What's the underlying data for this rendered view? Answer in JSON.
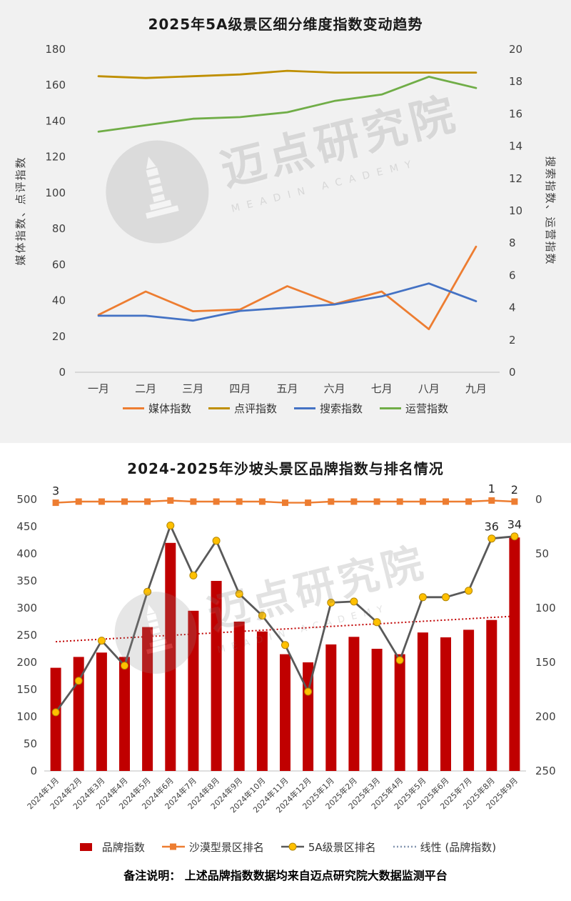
{
  "watermark": {
    "brand": "迈点研究院",
    "sub": "MEADIN ACADEMY"
  },
  "footer_note": "备注说明： 上述品牌指数数据均来自迈点研究院大数据监测平台",
  "chart_data": [
    {
      "type": "line",
      "title": "2025年5A级景区细分维度指数变动趋势",
      "left_axis_label": "媒体指数、点评指数",
      "right_axis_label": "搜索指数、运营指数",
      "categories": [
        "一月",
        "二月",
        "三月",
        "四月",
        "五月",
        "六月",
        "七月",
        "八月",
        "九月"
      ],
      "left_ticks": [
        0,
        20,
        40,
        60,
        80,
        100,
        120,
        140,
        160,
        180
      ],
      "right_ticks": [
        0,
        2,
        4,
        6,
        8,
        10,
        12,
        14,
        16,
        18,
        20
      ],
      "left_max": 180,
      "right_max": 20,
      "grid": false,
      "legend_position": "bottom",
      "series": [
        {
          "key": "media-index",
          "name": "媒体指数",
          "axis": "left",
          "color": "#ED7D31",
          "values": [
            32,
            45,
            34,
            35,
            48,
            38,
            45,
            24,
            70
          ]
        },
        {
          "key": "review-index",
          "name": "点评指数",
          "axis": "left",
          "color": "#BF8F00",
          "values": [
            165,
            164,
            165,
            166,
            168,
            167,
            167,
            167,
            167
          ]
        },
        {
          "key": "search-index",
          "name": "搜索指数",
          "axis": "right",
          "color": "#4472C4",
          "values": [
            3.5,
            3.5,
            3.2,
            3.8,
            4,
            4.2,
            4.7,
            5.5,
            4.4
          ]
        },
        {
          "key": "operation-index",
          "name": "运营指数",
          "axis": "right",
          "color": "#70AD47",
          "values": [
            14.9,
            15.3,
            15.7,
            15.8,
            16.1,
            16.8,
            17.2,
            18.3,
            17.6
          ]
        }
      ]
    },
    {
      "type": "combo",
      "title": "2024-2025年沙坡头景区品牌指数与排名情况",
      "categories": [
        "2024年1月",
        "2024年2月",
        "2024年3月",
        "2024年4月",
        "2024年5月",
        "2024年6月",
        "2024年7月",
        "2024年8月",
        "2024年9月",
        "2024年10月",
        "2024年11月",
        "2024年12月",
        "2025年1月",
        "2025年2月",
        "2025年3月",
        "2025年4月",
        "2025年5月",
        "2025年6月",
        "2025年7月",
        "2025年8月",
        "2025年9月"
      ],
      "left_ticks": [
        0,
        50,
        100,
        150,
        200,
        250,
        300,
        350,
        400,
        450,
        500
      ],
      "right_ticks": [
        0,
        50,
        100,
        150,
        200,
        250
      ],
      "left_max": 500,
      "right_max": 250,
      "right_axis_inverted": true,
      "grid": false,
      "legend_position": "bottom",
      "bar_series": {
        "key": "brand-index",
        "name": "品牌指数",
        "color": "#C00000",
        "values": [
          190,
          210,
          218,
          210,
          265,
          420,
          295,
          350,
          275,
          257,
          215,
          200,
          233,
          247,
          225,
          215,
          255,
          246,
          260,
          278,
          430
        ]
      },
      "line_series": [
        {
          "key": "desert-rank",
          "name": "沙漠型景区排名",
          "axis": "right",
          "marker": "square",
          "color": "#ED7D31",
          "values": [
            3,
            2,
            2,
            2,
            2,
            1,
            2,
            2,
            2,
            2,
            3,
            3,
            2,
            2,
            2,
            2,
            2,
            2,
            2,
            1,
            2
          ]
        },
        {
          "key": "5a-rank",
          "name": "5A级景区排名",
          "axis": "right",
          "marker": "circle",
          "marker_color": "#FFC000",
          "line_color": "#595959",
          "values": [
            196,
            167,
            130,
            153,
            85,
            24,
            70,
            38,
            87,
            107,
            134,
            177,
            95,
            94,
            113,
            148,
            90,
            90,
            84,
            36,
            34
          ]
        }
      ],
      "trend": {
        "key": "trendline",
        "name": "线性 (品牌指数)",
        "color": "#C00000",
        "legend_color": "#8496B0",
        "start": 238,
        "end": 285
      },
      "annotations": [
        {
          "series": "desert-rank",
          "index": 0,
          "text": "3"
        },
        {
          "series": "desert-rank",
          "index": 19,
          "text": "1"
        },
        {
          "series": "desert-rank",
          "index": 20,
          "text": "2"
        },
        {
          "series": "5a-rank",
          "index": 19,
          "text": "36"
        },
        {
          "series": "5a-rank",
          "index": 20,
          "text": "34"
        }
      ]
    }
  ]
}
